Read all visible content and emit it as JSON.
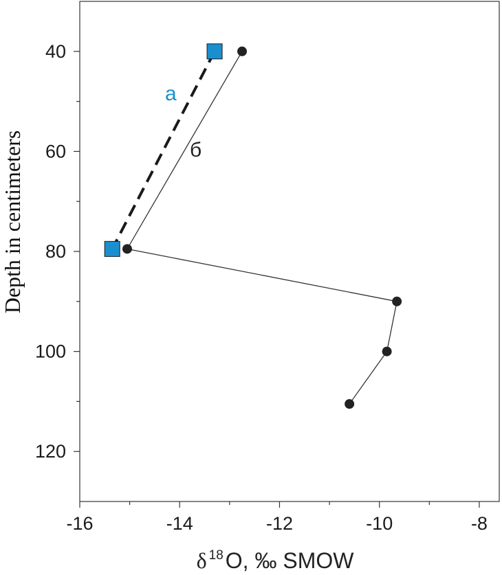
{
  "chart_data": {
    "type": "line",
    "xlabel": {
      "symbol": "δ",
      "sup": "18",
      "rest": "O, ‰ SMOW"
    },
    "ylabel": "Depth in centimeters",
    "xlim": [
      -16,
      -7.6
    ],
    "ylim": [
      30,
      130
    ],
    "y_inverted": true,
    "x_ticks_major": [
      -16,
      -14,
      -12,
      -10,
      -8
    ],
    "x_tick_labels": [
      "-16",
      "-14",
      "-12",
      "-10",
      "-8"
    ],
    "x_ticks_minor": [
      -15,
      -13,
      -11,
      -9
    ],
    "y_ticks_major": [
      40,
      60,
      80,
      100,
      120
    ],
    "y_tick_labels": [
      "40",
      "60",
      "80",
      "100",
      "120"
    ],
    "y_ticks_minor": [
      50,
      70,
      90,
      110
    ],
    "grid": false,
    "series": [
      {
        "label": "а",
        "color": "#1a8fd0",
        "marker": "square",
        "line_style": "dashed",
        "points": [
          {
            "x": -13.3,
            "y": 40
          },
          {
            "x": -15.35,
            "y": 79.5
          }
        ]
      },
      {
        "label": "б",
        "color": "#222222",
        "marker": "circle",
        "line_style": "solid",
        "points": [
          {
            "x": -12.75,
            "y": 40
          },
          {
            "x": -15.05,
            "y": 79.5
          },
          {
            "x": -9.65,
            "y": 90
          },
          {
            "x": -9.85,
            "y": 100
          },
          {
            "x": -10.6,
            "y": 110.5
          }
        ]
      }
    ]
  }
}
